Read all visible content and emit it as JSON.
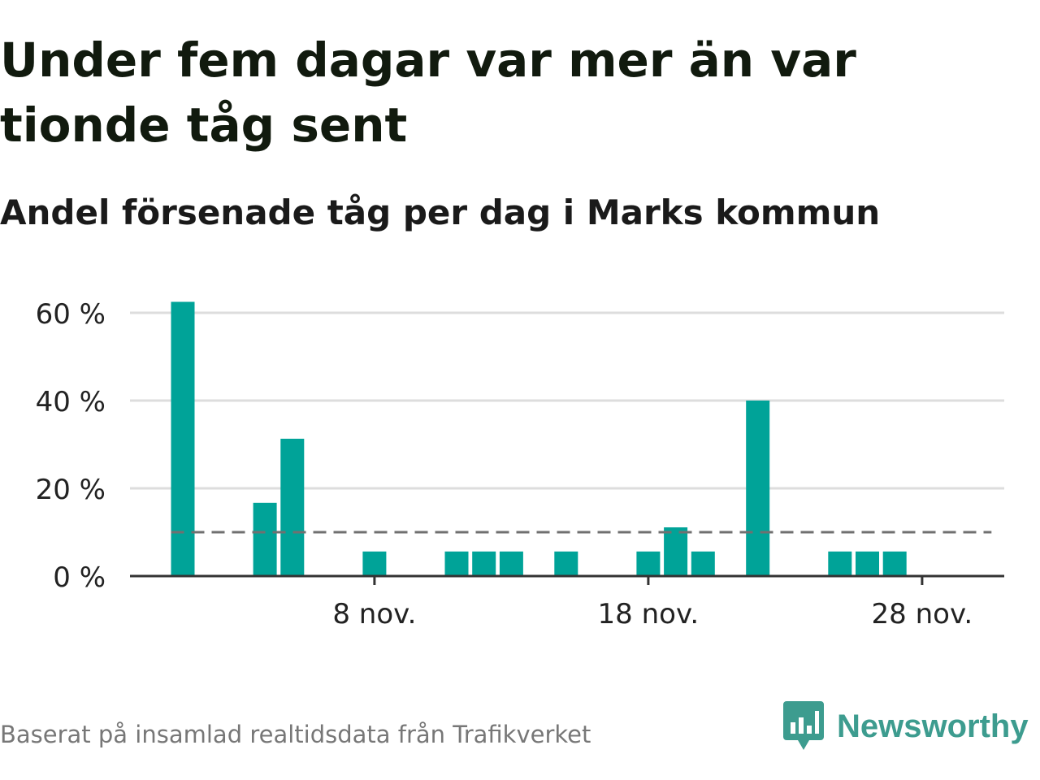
{
  "title": "Under fem dagar var mer än var tionde tåg sent",
  "subtitle": "Andel försenade tåg per dag i Marks kommun",
  "source": "Baserat på insamlad realtidsdata från Trafikverket",
  "brand": {
    "name": "Newsworthy",
    "icon": "newsworthy-logo-icon",
    "color": "#3d9c8f"
  },
  "colors": {
    "bar": "#00a398",
    "reference_line": "#707070",
    "grid": "#dddddd",
    "axis": "#333333"
  },
  "chart_data": {
    "type": "bar",
    "x_start_day": 1,
    "x_end_day": 30,
    "values": [
      62.5,
      null,
      null,
      16.7,
      31.3,
      null,
      null,
      5.6,
      null,
      null,
      5.6,
      5.6,
      5.6,
      null,
      5.6,
      null,
      null,
      5.6,
      11.1,
      5.6,
      null,
      40,
      null,
      null,
      5.6,
      5.6,
      5.6,
      null,
      null,
      null
    ],
    "reference_line": 10,
    "ylim": [
      0,
      60
    ],
    "y_ticks": [
      0,
      20,
      40,
      60
    ],
    "y_tick_labels": [
      "0 %",
      "20 %",
      "40 %",
      "60 %"
    ],
    "x_ticks": [
      {
        "day": 8,
        "label": "8 nov."
      },
      {
        "day": 18,
        "label": "18 nov."
      },
      {
        "day": 28,
        "label": "28 nov."
      }
    ],
    "grid": true
  }
}
